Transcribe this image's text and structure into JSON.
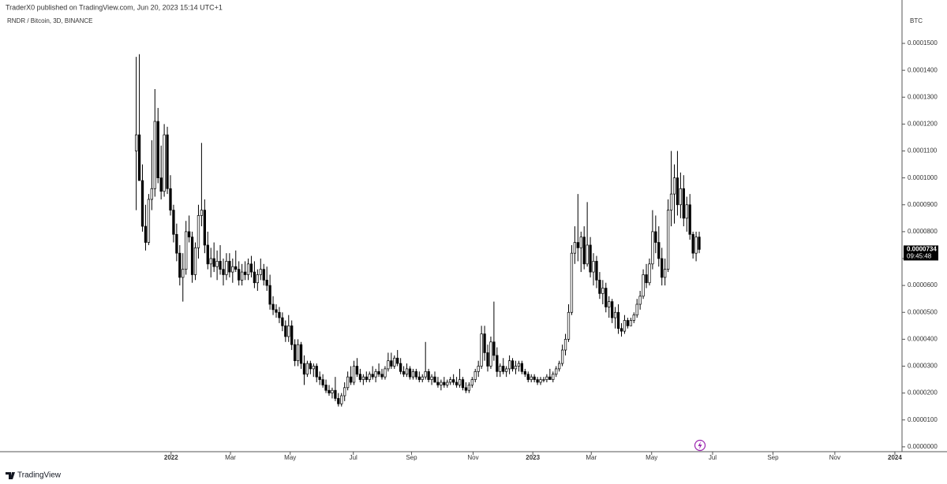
{
  "header": {
    "publisher": "TraderX0 published on TradingView.com, Jun 20, 2023 15:14 UTC+1"
  },
  "footer": {
    "brand": "TradingView"
  },
  "chart_data": {
    "type": "candlestick",
    "title": "RNDR / Bitcoin, 3D, BINANCE",
    "y_unit": "BTC",
    "up_color": "#ffffff",
    "down_color": "#000000",
    "wick_color": "#000000",
    "last_price": {
      "value": 7.34e-05,
      "label": "0.0000734"
    },
    "countdown": "09:45:48",
    "ylim": [
      -1.8e-06,
      0.0001632
    ],
    "yticks": [
      {
        "value": 0,
        "label": "0.0000000"
      },
      {
        "value": 1e-05,
        "label": "0.0000100"
      },
      {
        "value": 2e-05,
        "label": "0.0000200"
      },
      {
        "value": 3e-05,
        "label": "0.0000300"
      },
      {
        "value": 4e-05,
        "label": "0.0000400"
      },
      {
        "value": 5e-05,
        "label": "0.0000500"
      },
      {
        "value": 6e-05,
        "label": "0.0000600"
      },
      {
        "value": 7e-05,
        "label": "0.0000700"
      },
      {
        "value": 8e-05,
        "label": "0.0000800"
      },
      {
        "value": 9e-05,
        "label": "0.0000900"
      },
      {
        "value": 0.0001,
        "label": "0.0001000"
      },
      {
        "value": 0.00011,
        "label": "0.0001100"
      },
      {
        "value": 0.00012,
        "label": "0.0001200"
      },
      {
        "value": 0.00013,
        "label": "0.0001300"
      },
      {
        "value": 0.00014,
        "label": "0.0001400"
      },
      {
        "value": 0.00015,
        "label": "0.0001500"
      }
    ],
    "xlim": [
      -43.8,
      246.2
    ],
    "xticks": [
      {
        "value": 11.2,
        "label": "2022"
      },
      {
        "value": 30.3,
        "label": "Mar"
      },
      {
        "value": 49.5,
        "label": "May"
      },
      {
        "value": 69.8,
        "label": "Jul"
      },
      {
        "value": 88.5,
        "label": "Sep"
      },
      {
        "value": 108.3,
        "label": "Nov"
      },
      {
        "value": 127.5,
        "label": "2023"
      },
      {
        "value": 146.3,
        "label": "Mar"
      },
      {
        "value": 165.7,
        "label": "May"
      },
      {
        "value": 185.3,
        "label": "Jul"
      },
      {
        "value": 204.7,
        "label": "Sep"
      },
      {
        "value": 224.6,
        "label": "Nov"
      },
      {
        "value": 243.9,
        "label": "2024"
      }
    ],
    "candles": [
      [
        0.00011,
        0.000145,
        8.8e-05,
        0.000116
      ],
      [
        0.000116,
        0.000146,
        9.9e-05,
        9.9e-05
      ],
      [
        9.9e-05,
        0.000105,
        8e-05,
        8.2e-05
      ],
      [
        8.2e-05,
        9e-05,
        7.3e-05,
        7.6e-05
      ],
      [
        7.6e-05,
        9.4e-05,
        7.5e-05,
        9.2e-05
      ],
      [
        9.2e-05,
        0.000114,
        8.8e-05,
        9.6e-05
      ],
      [
        9.6e-05,
        0.000133,
        9.3e-05,
        0.000121
      ],
      [
        0.000121,
        0.000126,
        9.8e-05,
        0.0001
      ],
      [
        0.0001,
        0.000112,
        9.2e-05,
        9.5e-05
      ],
      [
        9.5e-05,
        0.00012,
        9.3e-05,
        0.000116
      ],
      [
        0.000116,
        0.000119,
        9.4e-05,
        9.6e-05
      ],
      [
        9.6e-05,
        0.000101,
        8.6e-05,
        8.8e-05
      ],
      [
        8.8e-05,
        9e-05,
        7.6e-05,
        7.9e-05
      ],
      [
        7.9e-05,
        8.3e-05,
        6.9e-05,
        7.2e-05
      ],
      [
        7.2e-05,
        7.5e-05,
        6e-05,
        6.3e-05
      ],
      [
        6.3e-05,
        7.2e-05,
        5.4e-05,
        6.6e-05
      ],
      [
        6.6e-05,
        8.4e-05,
        6.4e-05,
        8e-05
      ],
      [
        8e-05,
        8.6e-05,
        7.6e-05,
        7.8e-05
      ],
      [
        7.8e-05,
        8e-05,
        6.1e-05,
        6.4e-05
      ],
      [
        6.4e-05,
        7.6e-05,
        6.2e-05,
        7.4e-05
      ],
      [
        7.4e-05,
        9e-05,
        7e-05,
        8.6e-05
      ],
      [
        8.6e-05,
        0.000113,
        8.2e-05,
        8.8e-05
      ],
      [
        8.8e-05,
        9.2e-05,
        7.2e-05,
        7.5e-05
      ],
      [
        7.5e-05,
        8e-05,
        6.6e-05,
        6.8e-05
      ],
      [
        6.8e-05,
        7.4e-05,
        6.3e-05,
        7e-05
      ],
      [
        7e-05,
        7.6e-05,
        6.5e-05,
        6.7e-05
      ],
      [
        6.7e-05,
        7.3e-05,
        6.2e-05,
        6.9e-05
      ],
      [
        6.9e-05,
        7.5e-05,
        6.4e-05,
        6.6e-05
      ],
      [
        6.6e-05,
        7e-05,
        6e-05,
        6.4e-05
      ],
      [
        6.4e-05,
        7.2e-05,
        6.2e-05,
        6.9e-05
      ],
      [
        6.9e-05,
        7.2e-05,
        6.3e-05,
        6.5e-05
      ],
      [
        6.5e-05,
        7e-05,
        6.1e-05,
        6.7e-05
      ],
      [
        6.7e-05,
        7.3e-05,
        6.5e-05,
        6.6e-05
      ],
      [
        6.6e-05,
        6.9e-05,
        6e-05,
        6.2e-05
      ],
      [
        6.2e-05,
        6.8e-05,
        6e-05,
        6.5e-05
      ],
      [
        6.5e-05,
        6.9e-05,
        6.2e-05,
        6.4e-05
      ],
      [
        6.4e-05,
        7e-05,
        6.2e-05,
        6.8e-05
      ],
      [
        6.8e-05,
        7.1e-05,
        6.3e-05,
        6.5e-05
      ],
      [
        6.5e-05,
        6.9e-05,
        5.9e-05,
        6.1e-05
      ],
      [
        6.1e-05,
        6.6e-05,
        5.8e-05,
        6.4e-05
      ],
      [
        6.4e-05,
        7e-05,
        6.2e-05,
        6.6e-05
      ],
      [
        6.6e-05,
        6.8e-05,
        6e-05,
        6.2e-05
      ],
      [
        6.2e-05,
        6.7e-05,
        5.8e-05,
        6e-05
      ],
      [
        6e-05,
        6.4e-05,
        5.1e-05,
        5.3e-05
      ],
      [
        5.3e-05,
        5.6e-05,
        4.9e-05,
        5.1e-05
      ],
      [
        5.1e-05,
        5.3e-05,
        4.8e-05,
        5e-05
      ],
      [
        5e-05,
        5.2e-05,
        4.6e-05,
        4.8e-05
      ],
      [
        4.8e-05,
        5e-05,
        4.3e-05,
        4.5e-05
      ],
      [
        4.5e-05,
        4.7e-05,
        3.9e-05,
        4.1e-05
      ],
      [
        4.1e-05,
        4.9e-05,
        3.9e-05,
        4.5e-05
      ],
      [
        4.5e-05,
        4.7e-05,
        3.6e-05,
        3.8e-05
      ],
      [
        3.8e-05,
        4e-05,
        3e-05,
        3.2e-05
      ],
      [
        3.2e-05,
        4e-05,
        3e-05,
        3.8e-05
      ],
      [
        3.8e-05,
        3.9e-05,
        2.9e-05,
        3.1e-05
      ],
      [
        3.1e-05,
        3.4e-05,
        2.3e-05,
        2.7e-05
      ],
      [
        2.7e-05,
        3.2e-05,
        2.6e-05,
        3.1e-05
      ],
      [
        3.1e-05,
        3.2e-05,
        2.7e-05,
        2.9e-05
      ],
      [
        2.9e-05,
        3.1e-05,
        2.6e-05,
        3e-05
      ],
      [
        3e-05,
        3.1e-05,
        2.4e-05,
        2.6e-05
      ],
      [
        2.6e-05,
        2.8e-05,
        2.3e-05,
        2.5e-05
      ],
      [
        2.5e-05,
        2.7e-05,
        2.2e-05,
        2.3e-05
      ],
      [
        2.3e-05,
        2.5e-05,
        2e-05,
        2.1e-05
      ],
      [
        2.1e-05,
        2.3e-05,
        1.9e-05,
        2e-05
      ],
      [
        2e-05,
        2.2e-05,
        1.8e-05,
        2.1e-05
      ],
      [
        2.1e-05,
        2.6e-05,
        1.7e-05,
        1.8e-05
      ],
      [
        1.8e-05,
        2e-05,
        1.5e-05,
        1.6e-05
      ],
      [
        1.6e-05,
        2e-05,
        1.5e-05,
        1.9e-05
      ],
      [
        1.9e-05,
        2.4e-05,
        1.7e-05,
        2.2e-05
      ],
      [
        2.2e-05,
        2.8e-05,
        2.1e-05,
        2.6e-05
      ],
      [
        2.6e-05,
        3e-05,
        2.3e-05,
        2.4e-05
      ],
      [
        2.4e-05,
        3.2e-05,
        2.3e-05,
        3e-05
      ],
      [
        3e-05,
        3.3e-05,
        2.6e-05,
        2.7e-05
      ],
      [
        2.7e-05,
        2.9e-05,
        2.4e-05,
        2.5e-05
      ],
      [
        2.5e-05,
        2.7e-05,
        2.3e-05,
        2.6e-05
      ],
      [
        2.6e-05,
        2.8e-05,
        2.4e-05,
        2.5e-05
      ],
      [
        2.5e-05,
        2.8e-05,
        2.4e-05,
        2.7e-05
      ],
      [
        2.7e-05,
        3e-05,
        2.5e-05,
        2.6e-05
      ],
      [
        2.6e-05,
        2.9e-05,
        2.4e-05,
        2.8e-05
      ],
      [
        2.8e-05,
        3.1e-05,
        2.6e-05,
        2.7e-05
      ],
      [
        2.7e-05,
        2.9e-05,
        2.5e-05,
        2.6e-05
      ],
      [
        2.6e-05,
        3e-05,
        2.5e-05,
        2.9e-05
      ],
      [
        2.9e-05,
        3.5e-05,
        2.8e-05,
        3.2e-05
      ],
      [
        3.2e-05,
        3.5e-05,
        2.9e-05,
        3e-05
      ],
      [
        3e-05,
        3.4e-05,
        2.9e-05,
        3.3e-05
      ],
      [
        3.3e-05,
        3.6e-05,
        3e-05,
        3.1e-05
      ],
      [
        3.1e-05,
        3.3e-05,
        2.7e-05,
        2.8e-05
      ],
      [
        2.8e-05,
        3e-05,
        2.6e-05,
        2.7e-05
      ],
      [
        2.7e-05,
        3.1e-05,
        2.6e-05,
        2.9e-05
      ],
      [
        2.9e-05,
        3e-05,
        2.5e-05,
        2.6e-05
      ],
      [
        2.6e-05,
        2.9e-05,
        2.5e-05,
        2.8e-05
      ],
      [
        2.8e-05,
        2.9e-05,
        2.5e-05,
        2.6e-05
      ],
      [
        2.6e-05,
        2.8e-05,
        2.4e-05,
        2.5e-05
      ],
      [
        2.5e-05,
        2.7e-05,
        2.4e-05,
        2.6e-05
      ],
      [
        2.6e-05,
        3.9e-05,
        2.5e-05,
        2.8e-05
      ],
      [
        2.8e-05,
        2.9e-05,
        2.4e-05,
        2.5e-05
      ],
      [
        2.5e-05,
        2.7e-05,
        2.3e-05,
        2.6e-05
      ],
      [
        2.6e-05,
        2.8e-05,
        2.4e-05,
        2.4e-05
      ],
      [
        2.4e-05,
        2.6e-05,
        2.2e-05,
        2.3e-05
      ],
      [
        2.3e-05,
        2.5e-05,
        2.1e-05,
        2.4e-05
      ],
      [
        2.4e-05,
        2.6e-05,
        2.2e-05,
        2.3e-05
      ],
      [
        2.3e-05,
        2.5e-05,
        2.2e-05,
        2.4e-05
      ],
      [
        2.4e-05,
        2.6e-05,
        2.3e-05,
        2.5e-05
      ],
      [
        2.5e-05,
        2.7e-05,
        2.3e-05,
        2.4e-05
      ],
      [
        2.4e-05,
        2.6e-05,
        2.2e-05,
        2.3e-05
      ],
      [
        2.3e-05,
        2.9e-05,
        2.2e-05,
        2.5e-05
      ],
      [
        2.5e-05,
        2.6e-05,
        2.1e-05,
        2.2e-05
      ],
      [
        2.2e-05,
        2.4e-05,
        2e-05,
        2.1e-05
      ],
      [
        2.1e-05,
        2.4e-05,
        2e-05,
        2.3e-05
      ],
      [
        2.3e-05,
        2.6e-05,
        2.2e-05,
        2.5e-05
      ],
      [
        2.5e-05,
        2.9e-05,
        2.4e-05,
        2.8e-05
      ],
      [
        2.8e-05,
        3.2e-05,
        2.6e-05,
        3e-05
      ],
      [
        3e-05,
        4.5e-05,
        2.9e-05,
        4.2e-05
      ],
      [
        4.2e-05,
        4.5e-05,
        3.2e-05,
        3.5e-05
      ],
      [
        3.5e-05,
        3.8e-05,
        2.8e-05,
        3e-05
      ],
      [
        3e-05,
        4.1e-05,
        2.9e-05,
        3.9e-05
      ],
      [
        3.9e-05,
        5.4e-05,
        3.2e-05,
        3.4e-05
      ],
      [
        3.4e-05,
        3.7e-05,
        2.6e-05,
        2.8e-05
      ],
      [
        2.8e-05,
        3.1e-05,
        2.6e-05,
        3e-05
      ],
      [
        3e-05,
        3.3e-05,
        2.7e-05,
        2.8e-05
      ],
      [
        2.8e-05,
        3e-05,
        2.6e-05,
        2.9e-05
      ],
      [
        2.9e-05,
        3.4e-05,
        2.7e-05,
        3.2e-05
      ],
      [
        3.2e-05,
        3.3e-05,
        2.8e-05,
        2.9e-05
      ],
      [
        2.9e-05,
        3.2e-05,
        2.7e-05,
        3e-05
      ],
      [
        3e-05,
        3.2e-05,
        2.8e-05,
        3.1e-05
      ],
      [
        3.1e-05,
        3.2e-05,
        2.7e-05,
        2.8e-05
      ],
      [
        2.8e-05,
        2.9e-05,
        2.6e-05,
        2.7e-05
      ],
      [
        2.7e-05,
        2.8e-05,
        2.4e-05,
        2.5e-05
      ],
      [
        2.5e-05,
        2.7e-05,
        2.4e-05,
        2.6e-05
      ],
      [
        2.6e-05,
        2.7e-05,
        2.4e-05,
        2.5e-05
      ],
      [
        2.5e-05,
        2.6e-05,
        2.3e-05,
        2.4e-05
      ],
      [
        2.4e-05,
        2.6e-05,
        2.3e-05,
        2.5e-05
      ],
      [
        2.5e-05,
        2.6e-05,
        2.4e-05,
        2.5e-05
      ],
      [
        2.5e-05,
        2.7e-05,
        2.4e-05,
        2.6e-05
      ],
      [
        2.6e-05,
        2.9e-05,
        2.5e-05,
        2.5e-05
      ],
      [
        2.5e-05,
        2.8e-05,
        2.4e-05,
        2.7e-05
      ],
      [
        2.7e-05,
        3e-05,
        2.6e-05,
        2.9e-05
      ],
      [
        2.9e-05,
        3.2e-05,
        2.8e-05,
        3.1e-05
      ],
      [
        3.1e-05,
        3.8e-05,
        3e-05,
        3.6e-05
      ],
      [
        3.6e-05,
        4.2e-05,
        3.4e-05,
        4e-05
      ],
      [
        4e-05,
        5.3e-05,
        3.9e-05,
        5e-05
      ],
      [
        5e-05,
        7.5e-05,
        4.9e-05,
        7.2e-05
      ],
      [
        7.2e-05,
        8.2e-05,
        6.8e-05,
        7.6e-05
      ],
      [
        7.6e-05,
        9.4e-05,
        6.9e-05,
        7.4e-05
      ],
      [
        7.4e-05,
        8e-05,
        6.5e-05,
        7.8e-05
      ],
      [
        7.8e-05,
        8.2e-05,
        6.6e-05,
        6.8e-05
      ],
      [
        6.8e-05,
        9.1e-05,
        6.7e-05,
        7.5e-05
      ],
      [
        7.5e-05,
        7.8e-05,
        6.3e-05,
        6.5e-05
      ],
      [
        6.5e-05,
        7.2e-05,
        6e-05,
        6.9e-05
      ],
      [
        6.9e-05,
        7.1e-05,
        5.9e-05,
        6.2e-05
      ],
      [
        6.2e-05,
        6.5e-05,
        5.5e-05,
        5.7e-05
      ],
      [
        5.7e-05,
        6.2e-05,
        5.3e-05,
        5.9e-05
      ],
      [
        5.9e-05,
        6.1e-05,
        5e-05,
        5.2e-05
      ],
      [
        5.2e-05,
        5.6e-05,
        4.8e-05,
        5.4e-05
      ],
      [
        5.4e-05,
        5.5e-05,
        4.6e-05,
        4.8e-05
      ],
      [
        4.8e-05,
        5.2e-05,
        4.4e-05,
        5e-05
      ],
      [
        5e-05,
        5.3e-05,
        4.2e-05,
        4.4e-05
      ],
      [
        4.4e-05,
        4.6e-05,
        4.1e-05,
        4.3e-05
      ],
      [
        4.3e-05,
        4.9e-05,
        4.2e-05,
        4.7e-05
      ],
      [
        4.7e-05,
        4.8e-05,
        4.4e-05,
        4.5e-05
      ],
      [
        4.5e-05,
        4.8e-05,
        4.5e-05,
        4.7e-05
      ],
      [
        4.7e-05,
        5e-05,
        4.6e-05,
        4.9e-05
      ],
      [
        4.9e-05,
        5.5e-05,
        4.8e-05,
        5.3e-05
      ],
      [
        5.3e-05,
        5.8e-05,
        5.1e-05,
        5.6e-05
      ],
      [
        5.6e-05,
        6.6e-05,
        5.5e-05,
        6.4e-05
      ],
      [
        6.4e-05,
        6.8e-05,
        5.9e-05,
        6.1e-05
      ],
      [
        6.1e-05,
        7e-05,
        6e-05,
        6.8e-05
      ],
      [
        6.8e-05,
        8.8e-05,
        6.6e-05,
        8e-05
      ],
      [
        8e-05,
        8.6e-05,
        7.2e-05,
        7.6e-05
      ],
      [
        7.6e-05,
        8.2e-05,
        6.7e-05,
        7e-05
      ],
      [
        7e-05,
        7.4e-05,
        6e-05,
        6.3e-05
      ],
      [
        6.3e-05,
        7e-05,
        6e-05,
        6.6e-05
      ],
      [
        6.6e-05,
        9.2e-05,
        6.5e-05,
        8.8e-05
      ],
      [
        8.8e-05,
        0.00011,
        8.2e-05,
        9.4e-05
      ],
      [
        9.4e-05,
        0.000105,
        8.3e-05,
        0.0001
      ],
      [
        0.0001,
        0.00011,
        8.6e-05,
        9e-05
      ],
      [
        9e-05,
        0.000102,
        8.5e-05,
        9.6e-05
      ],
      [
        9.6e-05,
        0.000101,
        8.2e-05,
        8.5e-05
      ],
      [
        8.5e-05,
        9.3e-05,
        8e-05,
        9e-05
      ],
      [
        9e-05,
        9.4e-05,
        7.7e-05,
        7.9e-05
      ],
      [
        7.9e-05,
        8e-05,
        7e-05,
        7.2e-05
      ],
      [
        7.2e-05,
        8e-05,
        6.9e-05,
        7.8e-05
      ],
      [
        7.8e-05,
        8e-05,
        7.2e-05,
        7.34e-05
      ]
    ]
  }
}
